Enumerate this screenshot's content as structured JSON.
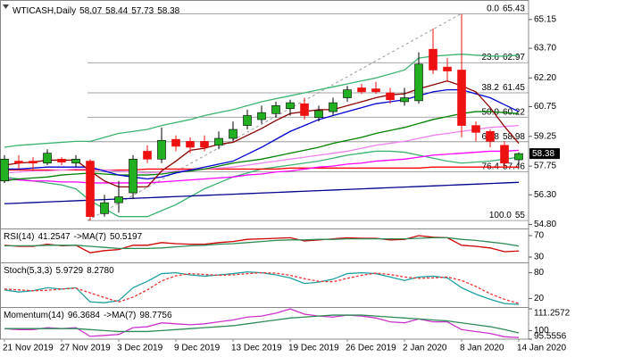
{
  "chart_data": [
    {
      "type": "candlestick",
      "title": "WTICASH,Daily",
      "categories": [
        "21 Nov 2019",
        null,
        null,
        null,
        "27 Nov 2019",
        null,
        null,
        null,
        "3 Dec 2019",
        null,
        null,
        null,
        "9 Dec 2019",
        null,
        null,
        null,
        "13 Dec 2019",
        null,
        null,
        null,
        "19 Dec 2019",
        null,
        null,
        null,
        "26 Dec 2019",
        null,
        null,
        null,
        "2 Jan 2020",
        null,
        null,
        null,
        "8 Jan 2020",
        null,
        null,
        null,
        "14 Jan 2020"
      ],
      "open": [
        57.0,
        58.0,
        58.0,
        57.9,
        58.1,
        57.9,
        58.0,
        55.35,
        55.9,
        56.4,
        58.5,
        58.1,
        59.1,
        59.0,
        59.0,
        58.8,
        59.15,
        59.8,
        60.1,
        60.4,
        60.65,
        60.9,
        60.2,
        60.5,
        61.2,
        61.7,
        61.65,
        61.45,
        61.0,
        61.05,
        63.65,
        62.75,
        62.6,
        59.8,
        59.5,
        58.8,
        58.07
      ],
      "high": [
        58.3,
        58.3,
        58.2,
        58.6,
        58.2,
        58.3,
        58.1,
        56.3,
        57.0,
        58.3,
        58.8,
        59.7,
        59.3,
        59.2,
        59.3,
        59.5,
        60.0,
        60.6,
        60.8,
        61.0,
        61.1,
        61.2,
        60.8,
        61.2,
        61.8,
        61.9,
        62.0,
        61.7,
        61.7,
        63.5,
        64.7,
        63.2,
        65.43,
        60.0,
        59.6,
        59.0,
        58.44
      ],
      "low": [
        56.9,
        57.6,
        57.5,
        57.8,
        57.8,
        57.7,
        55.0,
        55.2,
        55.4,
        56.1,
        57.9,
        57.9,
        58.5,
        58.4,
        58.5,
        58.6,
        59.0,
        59.6,
        59.9,
        60.2,
        60.3,
        60.1,
        60.0,
        60.3,
        61.0,
        61.4,
        61.4,
        60.9,
        60.8,
        60.9,
        62.4,
        62.0,
        59.2,
        59.0,
        58.7,
        57.7,
        57.73
      ],
      "close": [
        58.1,
        57.9,
        57.9,
        58.4,
        57.95,
        58.1,
        55.2,
        55.9,
        56.2,
        58.1,
        58.1,
        59.05,
        58.75,
        58.7,
        58.7,
        59.15,
        59.6,
        60.3,
        60.45,
        60.8,
        60.95,
        60.3,
        60.55,
        60.95,
        61.6,
        61.5,
        61.5,
        61.1,
        61.2,
        62.9,
        62.6,
        62.55,
        59.8,
        59.45,
        59.0,
        57.9,
        58.38
      ],
      "up_color": "#22b022",
      "down_color": "#ee1111",
      "series": [
        {
          "color": "#3cb371",
          "values": [
            58.7,
            58.8,
            58.85,
            58.9,
            58.95,
            59.0,
            59.0,
            59.2,
            59.4,
            59.5,
            59.6,
            59.8,
            59.95,
            60.1,
            60.3,
            60.45,
            60.6,
            60.8,
            61.0,
            61.15,
            61.3,
            61.45,
            61.6,
            61.75,
            61.9,
            62.05,
            62.2,
            62.4,
            62.6,
            63.2,
            63.3,
            63.35,
            63.4,
            63.35,
            63.3,
            63.3,
            63.35
          ]
        },
        {
          "color": "#3cb371",
          "values": [
            57.2,
            57.1,
            57.0,
            56.9,
            56.8,
            56.6,
            56.0,
            55.6,
            55.2,
            55.2,
            55.2,
            55.5,
            55.8,
            56.2,
            56.6,
            56.9,
            57.2,
            57.4,
            57.6,
            57.7,
            57.8,
            57.9,
            58.0,
            58.15,
            58.3,
            58.4,
            58.5,
            58.5,
            58.45,
            58.3,
            58.15,
            58.0,
            57.9,
            57.95,
            58.0,
            58.1,
            58.2
          ]
        },
        {
          "color": "#00008b",
          "values": [
            55.85,
            55.88,
            55.91,
            55.94,
            55.97,
            56.0,
            56.03,
            56.06,
            56.09,
            56.12,
            56.15,
            56.18,
            56.21,
            56.24,
            56.27,
            56.3,
            56.33,
            56.36,
            56.39,
            56.42,
            56.45,
            56.48,
            56.51,
            56.54,
            56.57,
            56.6,
            56.63,
            56.66,
            56.69,
            56.72,
            56.75,
            56.78,
            56.81,
            56.84,
            56.87,
            56.9,
            56.93
          ]
        },
        {
          "color": "#ff0000",
          "values": [
            57.55,
            57.55,
            57.55,
            57.55,
            57.55,
            57.55,
            57.55,
            57.55,
            57.55,
            57.55,
            57.6,
            57.6,
            57.6,
            57.6,
            57.6,
            57.6,
            57.6,
            57.6,
            57.6,
            57.6,
            57.65,
            57.65,
            57.65,
            57.65,
            57.65,
            57.65,
            57.65,
            57.65,
            57.65,
            57.65,
            57.7,
            57.7,
            57.7,
            57.7,
            57.7,
            57.7,
            57.7
          ]
        },
        {
          "color": "#ff00ff",
          "values": [
            57.1,
            57.05,
            57.0,
            57.0,
            56.95,
            56.95,
            56.9,
            56.9,
            56.9,
            56.9,
            56.9,
            56.95,
            57.0,
            57.05,
            57.1,
            57.15,
            57.2,
            57.3,
            57.35,
            57.45,
            57.5,
            57.6,
            57.7,
            57.75,
            57.85,
            57.9,
            58.0,
            58.05,
            58.1,
            58.2,
            58.3,
            58.35,
            58.4,
            58.45,
            58.5,
            58.5,
            58.55
          ]
        },
        {
          "color": "#ee82ee",
          "values": [
            57.4,
            57.45,
            57.5,
            57.5,
            57.55,
            57.6,
            57.6,
            57.55,
            57.5,
            57.45,
            57.4,
            57.45,
            57.5,
            57.55,
            57.6,
            57.65,
            57.7,
            57.8,
            57.9,
            58.0,
            58.1,
            58.2,
            58.3,
            58.4,
            58.5,
            58.65,
            58.8,
            58.9,
            59.0,
            59.15,
            59.3,
            59.4,
            59.5,
            59.6,
            59.7,
            59.75,
            59.8
          ]
        },
        {
          "color": "#008000",
          "values": [
            57.0,
            57.1,
            57.15,
            57.2,
            57.3,
            57.35,
            57.4,
            57.35,
            57.3,
            57.3,
            57.3,
            57.35,
            57.45,
            57.5,
            57.6,
            57.75,
            57.9,
            58.0,
            58.1,
            58.25,
            58.4,
            58.55,
            58.7,
            58.9,
            59.05,
            59.2,
            59.4,
            59.55,
            59.7,
            59.9,
            60.1,
            60.25,
            60.4,
            60.5,
            60.5,
            60.45,
            60.4
          ]
        },
        {
          "color": "#0000cd",
          "values": [
            57.6,
            57.6,
            57.65,
            57.7,
            57.7,
            57.7,
            57.7,
            57.5,
            57.3,
            57.2,
            57.1,
            57.2,
            57.4,
            57.55,
            57.7,
            57.85,
            58.0,
            58.35,
            58.7,
            59.1,
            59.5,
            59.8,
            60.1,
            60.3,
            60.5,
            60.7,
            60.9,
            61.0,
            61.1,
            61.3,
            61.5,
            61.6,
            61.6,
            61.4,
            61.2,
            60.85,
            60.5
          ]
        },
        {
          "color": "#8b0000",
          "values": [
            57.8,
            57.9,
            57.95,
            58.05,
            58.05,
            58.05,
            57.5,
            57.0,
            56.7,
            56.7,
            56.7,
            57.5,
            58.0,
            58.55,
            58.65,
            58.85,
            58.95,
            59.3,
            59.65,
            60.05,
            60.4,
            60.5,
            60.6,
            60.6,
            60.8,
            61.0,
            61.2,
            61.35,
            61.4,
            61.65,
            61.85,
            62.05,
            61.8,
            61.5,
            60.7,
            59.75,
            58.9
          ]
        }
      ],
      "fib": [
        {
          "ratio": "0.0",
          "value": 65.43
        },
        {
          "ratio": "23.6",
          "value": 62.97
        },
        {
          "ratio": "38.2",
          "value": 61.45
        },
        {
          "ratio": "50.0",
          "value": 60.22
        },
        {
          "ratio": "61.8",
          "value": 58.98
        },
        {
          "ratio": "76.4",
          "value": 57.46
        },
        {
          "ratio": "100.0",
          "value": 55,
          "label": "55.00"
        }
      ],
      "ylim": [
        54.6,
        66.0
      ],
      "yticks": [
        65.15,
        {
          "value": 63.7,
          "label": "63.70"
        },
        {
          "value": 62.2,
          "label": "62.20"
        },
        60.75,
        59.25,
        57.75,
        {
          "value": 56.3,
          "label": "56.30"
        },
        {
          "value": 54.8,
          "label": "54.80"
        }
      ]
    },
    {
      "type": "line",
      "title": "RSI(14)",
      "ma_title": "->MA(7)",
      "readouts": [
        41.2547,
        50.5197
      ],
      "series": [
        {
          "color": "#cc0000",
          "values": [
            52,
            50,
            50,
            54,
            51,
            52,
            38,
            42,
            44,
            52,
            52,
            57,
            55,
            54,
            54,
            57,
            59,
            63,
            64,
            65,
            66,
            60,
            62,
            64,
            66,
            65,
            65,
            62,
            63,
            70,
            67,
            66,
            52,
            50,
            47,
            40,
            41.2547
          ]
        },
        {
          "color": "#2e8b57",
          "values": [
            51,
            51,
            51,
            52,
            52,
            52,
            50,
            48,
            46,
            46,
            46,
            47,
            49,
            51,
            52,
            54,
            55,
            57,
            59,
            61,
            62,
            62,
            63,
            63,
            64,
            64,
            64,
            64,
            64,
            65,
            66,
            66,
            63,
            61,
            58,
            55,
            50.5197
          ]
        }
      ],
      "ylim": [
        20,
        80
      ],
      "yticks": [
        70,
        30
      ]
    },
    {
      "type": "line",
      "title": "Stoch(5,3,3)",
      "readouts": [
        5.9729,
        {
          "value": 8.278,
          "label": "8.2780"
        }
      ],
      "series": [
        {
          "color": "#20a0a0",
          "values": [
            40,
            35,
            38,
            45,
            42,
            45,
            12,
            10,
            15,
            45,
            60,
            78,
            80,
            75,
            72,
            75,
            78,
            82,
            80,
            75,
            68,
            55,
            58,
            65,
            78,
            80,
            78,
            70,
            62,
            70,
            72,
            68,
            45,
            30,
            18,
            8,
            5.9729
          ]
        },
        {
          "color": "#ee3333",
          "dash": true,
          "values": [
            42,
            40,
            38,
            39,
            42,
            44,
            33,
            22,
            12,
            23,
            40,
            61,
            73,
            78,
            76,
            74,
            75,
            78,
            80,
            79,
            74,
            66,
            60,
            59,
            67,
            74,
            79,
            76,
            70,
            67,
            68,
            70,
            62,
            48,
            31,
            18,
            8.278
          ]
        }
      ],
      "ylim": [
        0,
        100
      ],
      "yticks": [
        80,
        20
      ]
    },
    {
      "type": "line",
      "title": "Momentum(14)",
      "ma_title": "->MA(7)",
      "readouts": [
        96.3684,
        98.7756
      ],
      "series": [
        {
          "color": "#cc33cc",
          "values": [
            101,
            100.5,
            100.5,
            101.5,
            101,
            101.5,
            97,
            97.5,
            98,
            101.5,
            102,
            104,
            103.5,
            103,
            103.5,
            104.5,
            105.5,
            107,
            107.5,
            109,
            111.2,
            108.5,
            107.5,
            107,
            108,
            107.5,
            106.5,
            104.5,
            104,
            106,
            104.5,
            104.5,
            100.5,
            99.5,
            98.5,
            96.8,
            96.3684
          ]
        },
        {
          "color": "#2e8b57",
          "values": [
            101,
            101,
            101,
            101,
            101,
            101,
            100.5,
            100,
            99.5,
            99.5,
            99.5,
            100,
            100.5,
            101,
            101.5,
            102,
            102.5,
            103.5,
            104.5,
            105.5,
            106.5,
            107,
            107.5,
            108,
            108,
            108,
            107.5,
            107,
            106.5,
            106,
            105.5,
            105,
            104,
            103,
            102,
            100.5,
            98.7756
          ]
        }
      ],
      "ylim": [
        95.5556,
        111.2572
      ],
      "yticks": [
        111.2572,
        100,
        95.5556
      ]
    }
  ]
}
